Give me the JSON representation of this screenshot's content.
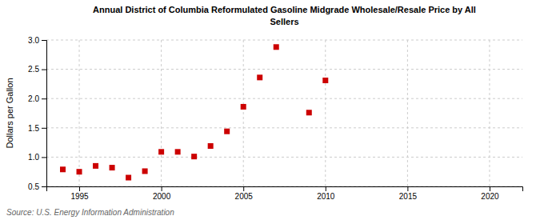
{
  "chart_data": {
    "type": "scatter",
    "title": "Annual District of Columbia Reformulated Gasoline Midgrade Wholesale/Resale Price by All\nSellers",
    "y_label": "Dollars per Gallon",
    "source": "Source: U.S. Energy Information Administration",
    "x": [
      1994,
      1995,
      1996,
      1997,
      1998,
      1999,
      2000,
      2001,
      2002,
      2003,
      2004,
      2005,
      2006,
      2007,
      2009,
      2010
    ],
    "values": [
      0.79,
      0.75,
      0.85,
      0.82,
      0.65,
      0.76,
      1.09,
      1.09,
      1.01,
      1.19,
      1.44,
      1.86,
      2.36,
      2.88,
      1.76,
      2.31
    ],
    "color": "#cc0000",
    "marker": "square",
    "xlim": [
      1993,
      2022
    ],
    "ylim": [
      0.5,
      3.0
    ],
    "xticks": [
      1995,
      2000,
      2005,
      2010,
      2015,
      2020
    ],
    "yticks": [
      0.5,
      {
        "value": 1.0,
        "label": "1.0"
      },
      1.5,
      {
        "value": 2.0,
        "label": "2.0"
      },
      2.5,
      {
        "value": 3.0,
        "label": "3.0"
      }
    ],
    "grid": true
  }
}
